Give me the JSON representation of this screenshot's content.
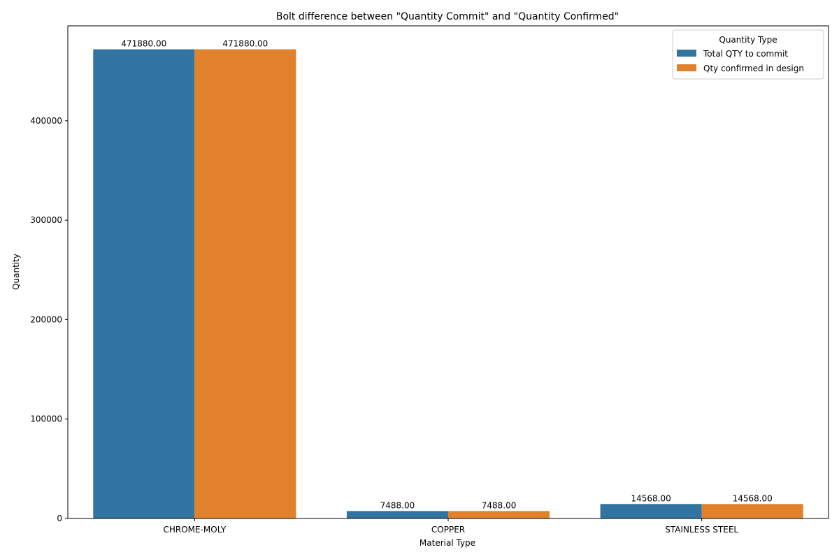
{
  "chart_data": {
    "type": "bar",
    "title": "Bolt difference between \"Quantity Commit\" and \"Quantity Confirmed\"",
    "xlabel": "Material Type",
    "ylabel": "Quantity",
    "categories": [
      "CHROME-MOLY",
      "COPPER",
      "STAINLESS STEEL"
    ],
    "series": [
      {
        "name": "Total QTY to commit",
        "color": "#3274a1",
        "values": [
          471880,
          7488,
          14568
        ],
        "labels": [
          "471880.00",
          "7488.00",
          "14568.00"
        ]
      },
      {
        "name": "Qty confirmed in design",
        "color": "#e1812c",
        "values": [
          471880,
          7488,
          14568
        ],
        "labels": [
          "471880.00",
          "7488.00",
          "14568.00"
        ]
      }
    ],
    "ylim": [
      0,
      495474
    ],
    "yticks": [
      0,
      100000,
      200000,
      300000,
      400000
    ],
    "ytick_labels": [
      "0",
      "100000",
      "200000",
      "300000",
      "400000"
    ],
    "legend": {
      "title": "Quantity Type",
      "position": "top-right"
    },
    "grid": false
  }
}
